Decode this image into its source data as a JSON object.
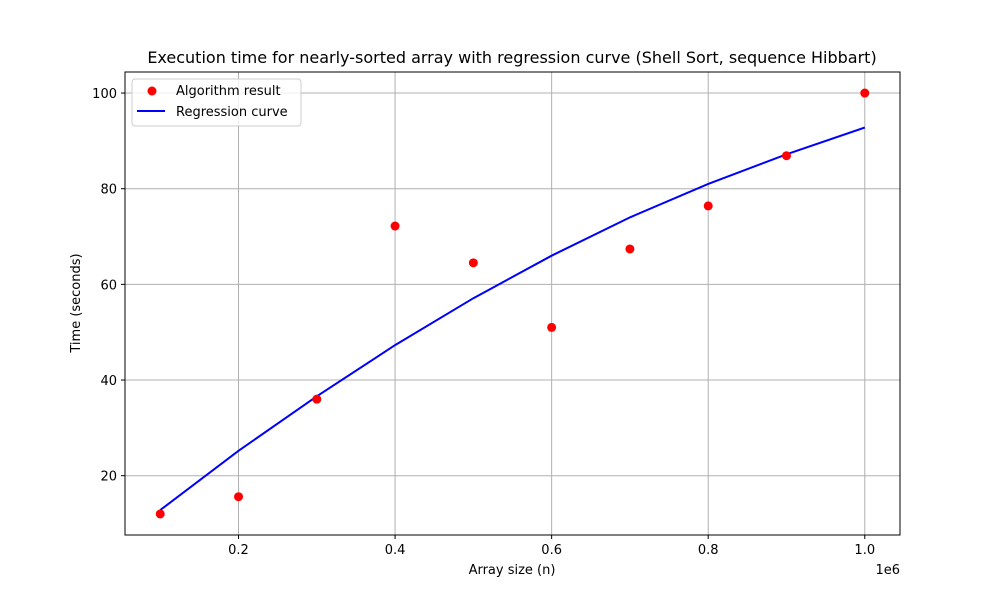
{
  "chart_data": {
    "type": "scatter",
    "title": "Execution time for nearly-sorted array with regression curve (Shell Sort, sequence Hibbart)",
    "xlabel": "Array size (n)",
    "ylabel": "Time (seconds)",
    "x_offset_label": "1e6",
    "xlim": [
      55000,
      1045000
    ],
    "ylim": [
      7.6,
      104.4
    ],
    "x_ticks": [
      200000,
      400000,
      600000,
      800000,
      1000000
    ],
    "x_tick_labels": [
      "0.2",
      "0.4",
      "0.6",
      "0.8",
      "1.0"
    ],
    "y_ticks": [
      20,
      40,
      60,
      80,
      100
    ],
    "y_tick_labels": [
      "20",
      "40",
      "60",
      "80",
      "100"
    ],
    "grid": true,
    "legend_position": "top-left",
    "series": [
      {
        "name": "Algorithm result",
        "kind": "scatter",
        "color": "#ff0000",
        "x": [
          100000,
          200000,
          300000,
          400000,
          500000,
          600000,
          700000,
          800000,
          900000,
          1000000
        ],
        "y": [
          12.0,
          15.6,
          36.0,
          72.2,
          64.5,
          51.0,
          67.4,
          76.4,
          86.9,
          100.0
        ]
      },
      {
        "name": "Regression curve",
        "kind": "line",
        "color": "#0000ff",
        "x": [
          100000,
          200000,
          300000,
          400000,
          500000,
          600000,
          700000,
          800000,
          900000,
          1000000
        ],
        "y": [
          12.8,
          25.2,
          36.6,
          47.3,
          57.1,
          66.0,
          74.0,
          81.0,
          87.2,
          92.8
        ]
      }
    ]
  }
}
